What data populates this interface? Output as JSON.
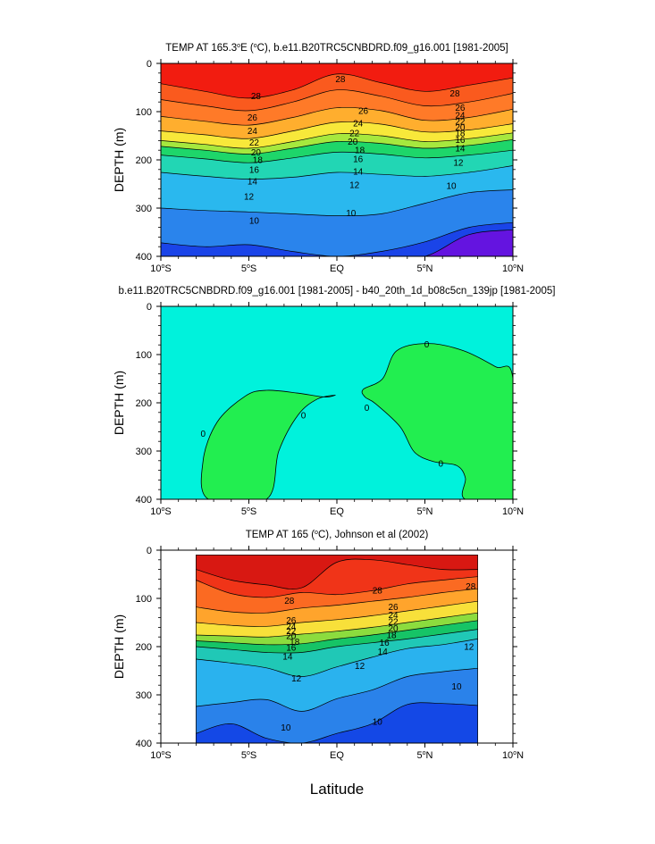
{
  "x_axis_label": "Latitude",
  "chart_data": [
    {
      "type": "heatmap",
      "title_parts": [
        "TEMP AT 165.3",
        "o",
        "E (",
        "o",
        "C), b.e11.B20TRC5CNBDRD.f09_g16.001 [1981-2005]"
      ],
      "ylabel": "DEPTH (m)",
      "xlim": [
        -10,
        10
      ],
      "ylim": [
        0,
        400
      ],
      "y_reversed": true,
      "y_ticks": [
        0,
        100,
        200,
        300,
        400
      ],
      "x_tick_labels": [
        {
          "value": -10,
          "num": "10",
          "hemi": "S"
        },
        {
          "value": -5,
          "num": "5",
          "hemi": "S"
        },
        {
          "value": 0,
          "num": "EQ",
          "hemi": ""
        },
        {
          "value": 5,
          "num": "5",
          "hemi": "N"
        },
        {
          "value": 10,
          "num": "10",
          "hemi": "N"
        }
      ],
      "data_extent": [
        -10,
        10
      ],
      "bands": [
        {
          "color": "#f21c10",
          "depths": [
            0,
            0,
            0,
            0,
            0,
            0,
            0,
            0,
            0
          ]
        },
        {
          "color": "#fa5a1e",
          "depths": [
            42,
            58,
            72,
            55,
            22,
            40,
            58,
            45,
            30
          ]
        },
        {
          "color": "#ff7a28",
          "depths": [
            75,
            88,
            98,
            80,
            55,
            68,
            88,
            80,
            62
          ]
        },
        {
          "color": "#ffae2e",
          "depths": [
            110,
            120,
            128,
            112,
            92,
            98,
            118,
            112,
            95
          ]
        },
        {
          "color": "#f8e83a",
          "depths": [
            140,
            148,
            156,
            140,
            122,
            126,
            142,
            138,
            125
          ]
        },
        {
          "color": "#a6e83e",
          "depths": [
            160,
            168,
            176,
            162,
            146,
            150,
            162,
            156,
            144
          ]
        },
        {
          "color": "#1ed66a",
          "depths": [
            172,
            180,
            188,
            176,
            162,
            166,
            176,
            170,
            158
          ]
        },
        {
          "color": "#22d6b4",
          "depths": [
            190,
            198,
            206,
            196,
            184,
            188,
            196,
            190,
            180
          ]
        },
        {
          "color": "#2ab8ee",
          "depths": [
            226,
            234,
            240,
            236,
            226,
            230,
            234,
            226,
            212
          ]
        },
        {
          "color": "#2a84ec",
          "depths": [
            300,
            305,
            308,
            312,
            316,
            312,
            290,
            268,
            262
          ]
        },
        {
          "color": "#1a44e8",
          "depths": [
            372,
            380,
            376,
            390,
            400,
            390,
            370,
            340,
            330
          ]
        },
        {
          "color": "#6414e0",
          "depths": [
            400,
            400,
            400,
            400,
            400,
            400,
            400,
            355,
            345
          ]
        }
      ],
      "contour_labels": [
        {
          "x": -4.6,
          "y": 68,
          "text": "28"
        },
        {
          "x": 0.2,
          "y": 32,
          "text": "28"
        },
        {
          "x": 6.7,
          "y": 62,
          "text": "28"
        },
        {
          "x": -4.8,
          "y": 112,
          "text": "26"
        },
        {
          "x": 1.5,
          "y": 98,
          "text": "26"
        },
        {
          "x": 7.0,
          "y": 92,
          "text": "26"
        },
        {
          "x": -4.8,
          "y": 140,
          "text": "24"
        },
        {
          "x": 1.2,
          "y": 124,
          "text": "24"
        },
        {
          "x": 7.0,
          "y": 107,
          "text": "24"
        },
        {
          "x": -4.7,
          "y": 164,
          "text": "22"
        },
        {
          "x": 1.0,
          "y": 144,
          "text": "22"
        },
        {
          "x": 7.0,
          "y": 120,
          "text": "22"
        },
        {
          "x": -4.6,
          "y": 184,
          "text": "20"
        },
        {
          "x": 0.9,
          "y": 162,
          "text": "20"
        },
        {
          "x": 7.0,
          "y": 132,
          "text": "20"
        },
        {
          "x": -4.5,
          "y": 200,
          "text": "18"
        },
        {
          "x": 1.3,
          "y": 180,
          "text": "18"
        },
        {
          "x": 7.0,
          "y": 144,
          "text": "18"
        },
        {
          "x": -4.7,
          "y": 220,
          "text": "16"
        },
        {
          "x": 1.2,
          "y": 198,
          "text": "16"
        },
        {
          "x": 7.0,
          "y": 158,
          "text": "16"
        },
        {
          "x": -4.8,
          "y": 244,
          "text": "14"
        },
        {
          "x": 1.2,
          "y": 224,
          "text": "14"
        },
        {
          "x": 7.0,
          "y": 176,
          "text": "14"
        },
        {
          "x": -5.0,
          "y": 276,
          "text": "12"
        },
        {
          "x": 1.0,
          "y": 252,
          "text": "12"
        },
        {
          "x": 6.9,
          "y": 206,
          "text": "12"
        },
        {
          "x": -4.7,
          "y": 326,
          "text": "10"
        },
        {
          "x": 0.8,
          "y": 310,
          "text": "10"
        },
        {
          "x": 6.5,
          "y": 254,
          "text": "10"
        }
      ]
    },
    {
      "type": "heatmap",
      "title_parts": [
        "b.e11.B20TRC5CNBDRD.f09_g16.001 [1981-2005] - b40_20th_1d_b08c5cn_139jp [1981-2005]"
      ],
      "ylabel": "DEPTH (m)",
      "xlim": [
        -10,
        10
      ],
      "ylim": [
        0,
        400
      ],
      "y_reversed": true,
      "y_ticks": [
        0,
        100,
        200,
        300,
        400
      ],
      "x_tick_labels": [
        {
          "value": -10,
          "num": "10",
          "hemi": "S"
        },
        {
          "value": -5,
          "num": "5",
          "hemi": "S"
        },
        {
          "value": 0,
          "num": "EQ",
          "hemi": ""
        },
        {
          "value": 5,
          "num": "5",
          "hemi": "N"
        },
        {
          "value": 10,
          "num": "10",
          "hemi": "N"
        }
      ],
      "background": "#00f2dc",
      "regions": [
        {
          "color": "#22ee50",
          "points": [
            [
              -7.3,
              400
            ],
            [
              -7.6,
              320
            ],
            [
              -6.8,
              240
            ],
            [
              -5.2,
              186
            ],
            [
              -4.0,
              174
            ],
            [
              -2.2,
              180
            ],
            [
              -0.7,
              188
            ],
            [
              -0.1,
              184
            ],
            [
              -1.1,
              192
            ],
            [
              -2.2,
              225
            ],
            [
              -3.3,
              300
            ],
            [
              -4.0,
              400
            ]
          ]
        },
        {
          "color": "#22ee50",
          "points": [
            [
              1.5,
              172
            ],
            [
              2.6,
              150
            ],
            [
              3.4,
              92
            ],
            [
              5.2,
              77
            ],
            [
              7.2,
              92
            ],
            [
              9.0,
              125
            ],
            [
              10.0,
              150
            ],
            [
              10.0,
              400
            ],
            [
              7.3,
              400
            ],
            [
              7.3,
              356
            ],
            [
              6.8,
              330
            ],
            [
              5.5,
              322
            ],
            [
              4.4,
              302
            ],
            [
              3.6,
              250
            ],
            [
              2.2,
              202
            ],
            [
              1.6,
              188
            ]
          ]
        }
      ],
      "contour_labels": [
        {
          "x": -7.6,
          "y": 264,
          "text": "0"
        },
        {
          "x": -1.9,
          "y": 226,
          "text": "0"
        },
        {
          "x": 1.7,
          "y": 210,
          "text": "0"
        },
        {
          "x": 5.1,
          "y": 79,
          "text": "0"
        },
        {
          "x": 5.9,
          "y": 326,
          "text": "0"
        }
      ]
    },
    {
      "type": "heatmap",
      "title_parts": [
        "TEMP AT 165 (",
        "o",
        "C), Johnson et al (2002)"
      ],
      "ylabel": "DEPTH (m)",
      "xlim": [
        -10,
        10
      ],
      "ylim": [
        0,
        400
      ],
      "y_reversed": true,
      "y_ticks": [
        0,
        100,
        200,
        300,
        400
      ],
      "x_tick_labels": [
        {
          "value": -10,
          "num": "10",
          "hemi": "S"
        },
        {
          "value": -5,
          "num": "5",
          "hemi": "S"
        },
        {
          "value": 0,
          "num": "EQ",
          "hemi": ""
        },
        {
          "value": 5,
          "num": "5",
          "hemi": "N"
        },
        {
          "value": 10,
          "num": "10",
          "hemi": "N"
        }
      ],
      "data_extent": [
        -8,
        8
      ],
      "top_depth": 10,
      "bands": [
        {
          "color": "#d81812",
          "depths": [
            10,
            10,
            10,
            10,
            10,
            10,
            10,
            10,
            10
          ]
        },
        {
          "color": "#f03418",
          "depths": [
            40,
            62,
            72,
            78,
            25,
            20,
            30,
            40,
            40
          ]
        },
        {
          "color": "#fb6a22",
          "depths": [
            62,
            90,
            98,
            88,
            92,
            84,
            70,
            62,
            55
          ]
        },
        {
          "color": "#ffa42c",
          "depths": [
            118,
            128,
            130,
            120,
            114,
            106,
            98,
            88,
            80
          ]
        },
        {
          "color": "#f8e03a",
          "depths": [
            150,
            156,
            158,
            150,
            144,
            136,
            126,
            116,
            106
          ]
        },
        {
          "color": "#8cdc3e",
          "depths": [
            176,
            178,
            180,
            174,
            168,
            160,
            150,
            140,
            130
          ]
        },
        {
          "color": "#16c466",
          "depths": [
            188,
            192,
            196,
            194,
            184,
            176,
            166,
            156,
            146
          ]
        },
        {
          "color": "#20c8b6",
          "depths": [
            200,
            206,
            212,
            212,
            200,
            192,
            184,
            174,
            164
          ]
        },
        {
          "color": "#2ab2ee",
          "depths": [
            226,
            234,
            244,
            262,
            242,
            222,
            204,
            196,
            184
          ]
        },
        {
          "color": "#2a82ea",
          "depths": [
            324,
            316,
            310,
            334,
            308,
            290,
            262,
            252,
            245
          ]
        },
        {
          "color": "#1448e6",
          "depths": [
            380,
            360,
            390,
            400,
            380,
            360,
            320,
            318,
            322
          ]
        }
      ],
      "contour_labels": [
        {
          "x": -2.7,
          "y": 105,
          "text": "28"
        },
        {
          "x": 2.3,
          "y": 83,
          "text": "28"
        },
        {
          "x": 7.6,
          "y": 75,
          "text": "28"
        },
        {
          "x": -2.6,
          "y": 145,
          "text": "26"
        },
        {
          "x": 3.2,
          "y": 118,
          "text": "26"
        },
        {
          "x": -2.6,
          "y": 158,
          "text": "24"
        },
        {
          "x": 3.2,
          "y": 134,
          "text": "24"
        },
        {
          "x": -2.6,
          "y": 168,
          "text": "22"
        },
        {
          "x": 3.2,
          "y": 148,
          "text": "22"
        },
        {
          "x": -2.6,
          "y": 178,
          "text": "20"
        },
        {
          "x": 3.2,
          "y": 162,
          "text": "20"
        },
        {
          "x": -2.4,
          "y": 190,
          "text": "18"
        },
        {
          "x": 3.1,
          "y": 176,
          "text": "18"
        },
        {
          "x": -2.6,
          "y": 202,
          "text": "16"
        },
        {
          "x": 2.7,
          "y": 192,
          "text": "16"
        },
        {
          "x": -2.8,
          "y": 220,
          "text": "14"
        },
        {
          "x": 2.6,
          "y": 210,
          "text": "14"
        },
        {
          "x": -2.3,
          "y": 266,
          "text": "12"
        },
        {
          "x": 1.3,
          "y": 240,
          "text": "12"
        },
        {
          "x": 7.5,
          "y": 200,
          "text": "12"
        },
        {
          "x": -2.9,
          "y": 368,
          "text": "10"
        },
        {
          "x": 2.3,
          "y": 356,
          "text": "10"
        },
        {
          "x": 6.8,
          "y": 282,
          "text": "10"
        }
      ]
    }
  ]
}
